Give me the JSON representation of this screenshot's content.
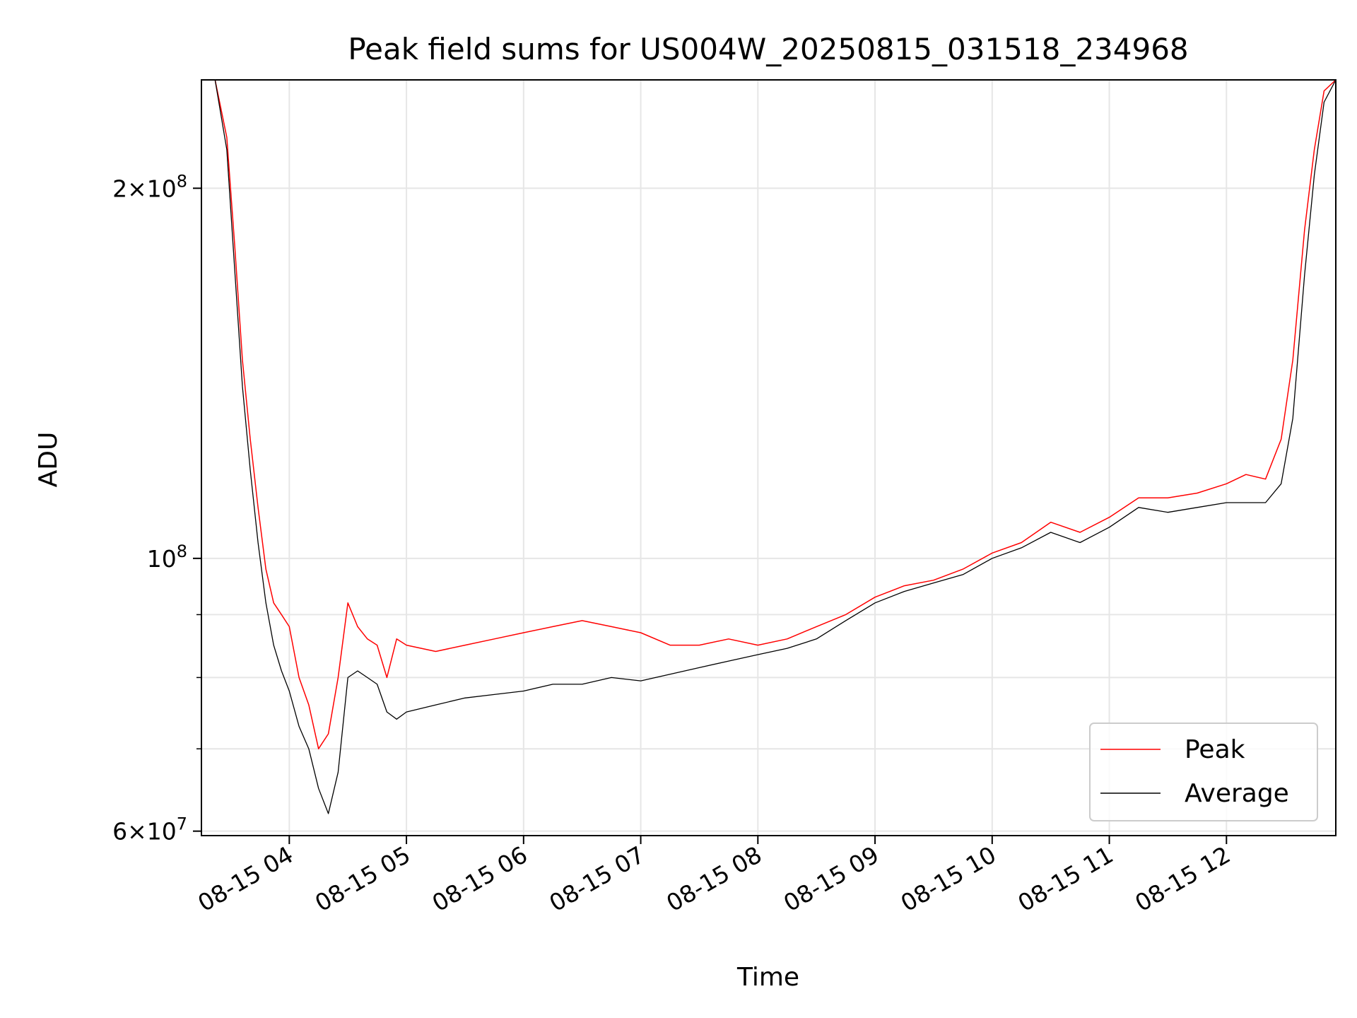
{
  "chart_data": {
    "type": "line",
    "title": "Peak field sums for US004W_20250815_031518_234968",
    "xlabel": "Time",
    "ylabel": "ADU",
    "y_scale": "log",
    "ylim": [
      59500000,
      245000000
    ],
    "grid": true,
    "legend_position": "lower right",
    "x_tick_labels": [
      "08-15 04",
      "08-15 05",
      "08-15 06",
      "08-15 07",
      "08-15 08",
      "08-15 09",
      "08-15 10",
      "08-15 11",
      "08-15 12"
    ],
    "x_ticks": [
      "2025-08-15 04:00",
      "2025-08-15 05:00",
      "2025-08-15 06:00",
      "2025-08-15 07:00",
      "2025-08-15 08:00",
      "2025-08-15 09:00",
      "2025-08-15 10:00",
      "2025-08-15 11:00",
      "2025-08-15 12:00"
    ],
    "xlim": [
      "2025-08-15 03:15",
      "2025-08-15 12:56"
    ],
    "y_major_ticks": [
      {
        "value": 60000000,
        "base": "6",
        "exp": "7"
      },
      {
        "value": 100000000,
        "base": "",
        "exp": "8"
      },
      {
        "value": 200000000,
        "base": "2",
        "exp": "8"
      }
    ],
    "y_minor_ticks": [
      70000000,
      80000000,
      90000000
    ],
    "series": [
      {
        "name": "Peak",
        "color": "#ff0000",
        "x": [
          "2025-08-15 03:15",
          "2025-08-15 03:22",
          "2025-08-15 03:28",
          "2025-08-15 03:32",
          "2025-08-15 03:36",
          "2025-08-15 03:40",
          "2025-08-15 03:44",
          "2025-08-15 03:48",
          "2025-08-15 03:52",
          "2025-08-15 03:56",
          "2025-08-15 04:00",
          "2025-08-15 04:05",
          "2025-08-15 04:10",
          "2025-08-15 04:15",
          "2025-08-15 04:20",
          "2025-08-15 04:25",
          "2025-08-15 04:30",
          "2025-08-15 04:35",
          "2025-08-15 04:40",
          "2025-08-15 04:45",
          "2025-08-15 04:50",
          "2025-08-15 04:55",
          "2025-08-15 05:00",
          "2025-08-15 05:15",
          "2025-08-15 05:30",
          "2025-08-15 05:45",
          "2025-08-15 06:00",
          "2025-08-15 06:15",
          "2025-08-15 06:30",
          "2025-08-15 06:45",
          "2025-08-15 07:00",
          "2025-08-15 07:15",
          "2025-08-15 07:30",
          "2025-08-15 07:45",
          "2025-08-15 08:00",
          "2025-08-15 08:15",
          "2025-08-15 08:30",
          "2025-08-15 08:45",
          "2025-08-15 09:00",
          "2025-08-15 09:15",
          "2025-08-15 09:30",
          "2025-08-15 09:45",
          "2025-08-15 10:00",
          "2025-08-15 10:15",
          "2025-08-15 10:30",
          "2025-08-15 10:45",
          "2025-08-15 11:00",
          "2025-08-15 11:15",
          "2025-08-15 11:30",
          "2025-08-15 11:45",
          "2025-08-15 12:00",
          "2025-08-15 12:10",
          "2025-08-15 12:20",
          "2025-08-15 12:28",
          "2025-08-15 12:34",
          "2025-08-15 12:40",
          "2025-08-15 12:45",
          "2025-08-15 12:50",
          "2025-08-15 12:56"
        ],
        "y": [
          245000000,
          245000000,
          220000000,
          180000000,
          145000000,
          125000000,
          110000000,
          98000000,
          92000000,
          90000000,
          88000000,
          80000000,
          76000000,
          70000000,
          72000000,
          80000000,
          92000000,
          88000000,
          86000000,
          85000000,
          80000000,
          86000000,
          85000000,
          84000000,
          85000000,
          86000000,
          87000000,
          88000000,
          89000000,
          88000000,
          87000000,
          85000000,
          85000000,
          86000000,
          85000000,
          86000000,
          88000000,
          90000000,
          93000000,
          95000000,
          96000000,
          98000000,
          101000000,
          103000000,
          107000000,
          105000000,
          108000000,
          112000000,
          112000000,
          113000000,
          115000000,
          117000000,
          116000000,
          125000000,
          145000000,
          185000000,
          215000000,
          240000000,
          245000000
        ]
      },
      {
        "name": "Average",
        "color": "#000000",
        "x": [
          "2025-08-15 03:15",
          "2025-08-15 03:22",
          "2025-08-15 03:28",
          "2025-08-15 03:32",
          "2025-08-15 03:36",
          "2025-08-15 03:40",
          "2025-08-15 03:44",
          "2025-08-15 03:48",
          "2025-08-15 03:52",
          "2025-08-15 03:56",
          "2025-08-15 04:00",
          "2025-08-15 04:05",
          "2025-08-15 04:10",
          "2025-08-15 04:15",
          "2025-08-15 04:20",
          "2025-08-15 04:25",
          "2025-08-15 04:30",
          "2025-08-15 04:35",
          "2025-08-15 04:40",
          "2025-08-15 04:45",
          "2025-08-15 04:50",
          "2025-08-15 04:55",
          "2025-08-15 05:00",
          "2025-08-15 05:15",
          "2025-08-15 05:30",
          "2025-08-15 05:45",
          "2025-08-15 06:00",
          "2025-08-15 06:15",
          "2025-08-15 06:30",
          "2025-08-15 06:45",
          "2025-08-15 07:00",
          "2025-08-15 07:15",
          "2025-08-15 07:30",
          "2025-08-15 07:45",
          "2025-08-15 08:00",
          "2025-08-15 08:15",
          "2025-08-15 08:30",
          "2025-08-15 08:45",
          "2025-08-15 09:00",
          "2025-08-15 09:15",
          "2025-08-15 09:30",
          "2025-08-15 09:45",
          "2025-08-15 10:00",
          "2025-08-15 10:15",
          "2025-08-15 10:30",
          "2025-08-15 10:45",
          "2025-08-15 11:00",
          "2025-08-15 11:15",
          "2025-08-15 11:30",
          "2025-08-15 11:45",
          "2025-08-15 12:00",
          "2025-08-15 12:10",
          "2025-08-15 12:20",
          "2025-08-15 12:28",
          "2025-08-15 12:34",
          "2025-08-15 12:40",
          "2025-08-15 12:45",
          "2025-08-15 12:50",
          "2025-08-15 12:56"
        ],
        "y": [
          245000000,
          245000000,
          215000000,
          172000000,
          138000000,
          118000000,
          103000000,
          92000000,
          85000000,
          81000000,
          78000000,
          73000000,
          70000000,
          65000000,
          62000000,
          67000000,
          80000000,
          81000000,
          80000000,
          79000000,
          75000000,
          74000000,
          75000000,
          76000000,
          77000000,
          77500000,
          78000000,
          79000000,
          79000000,
          80000000,
          79500000,
          80500000,
          81500000,
          82500000,
          83500000,
          84500000,
          86000000,
          89000000,
          92000000,
          94000000,
          95500000,
          97000000,
          100000000,
          102000000,
          105000000,
          103000000,
          106000000,
          110000000,
          109000000,
          110000000,
          111000000,
          111000000,
          111000000,
          115000000,
          130000000,
          170000000,
          205000000,
          235000000,
          245000000
        ]
      }
    ]
  }
}
